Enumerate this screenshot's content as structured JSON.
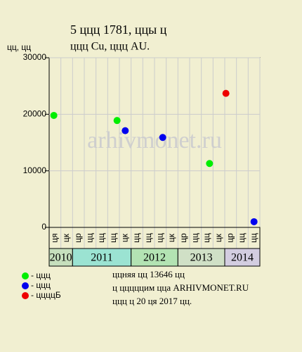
{
  "chart_data": {
    "type": "scatter",
    "title": "5 ццц 1781, ццы ц",
    "subtitle": "ццц Cu, ццц AU.",
    "ylabel": "цц, цц",
    "watermark": "arhivmonet.ru",
    "ylim": [
      0,
      30000
    ],
    "yticks": [
      0,
      10000,
      20000,
      30000
    ],
    "grid": true,
    "xlim": [
      0,
      18
    ],
    "periods": [
      {
        "label": "2010",
        "color": "#c6dfbd",
        "columns": [
          "ця",
          "цк"
        ]
      },
      {
        "label": "2011",
        "color": "#9be3d2",
        "columns": [
          "цр",
          "цц",
          "цц",
          "цц",
          "цк"
        ]
      },
      {
        "label": "2012",
        "color": "#b3e3b3",
        "columns": [
          "цц",
          "цц",
          "цц",
          "цк"
        ]
      },
      {
        "label": "2013",
        "color": "#d0e0c6",
        "columns": [
          "цр",
          "цц",
          "цц",
          "цк"
        ]
      },
      {
        "label": "2014",
        "color": "#d3cde0",
        "columns": [
          "цр",
          "цц",
          "цц"
        ]
      }
    ],
    "series": [
      {
        "name": "- ццц",
        "color": "#00ee00",
        "x": [
          0.4,
          5.8,
          13.7
        ],
        "values": [
          19800,
          18900,
          11300
        ]
      },
      {
        "name": "- ццц",
        "color": "#0000ee",
        "x": [
          6.5,
          9.7,
          17.5
        ],
        "values": [
          17100,
          15900,
          1000
        ]
      },
      {
        "name": "- ццццБ",
        "color": "#ee0000",
        "x": [
          15.1
        ],
        "values": [
          23700
        ]
      }
    ],
    "notes": [
      "ццняя цц 13646 цц",
      "ц цццццим цца ARHIVMONET.RU",
      "ццц ц 20 ця 2017 цц."
    ]
  }
}
